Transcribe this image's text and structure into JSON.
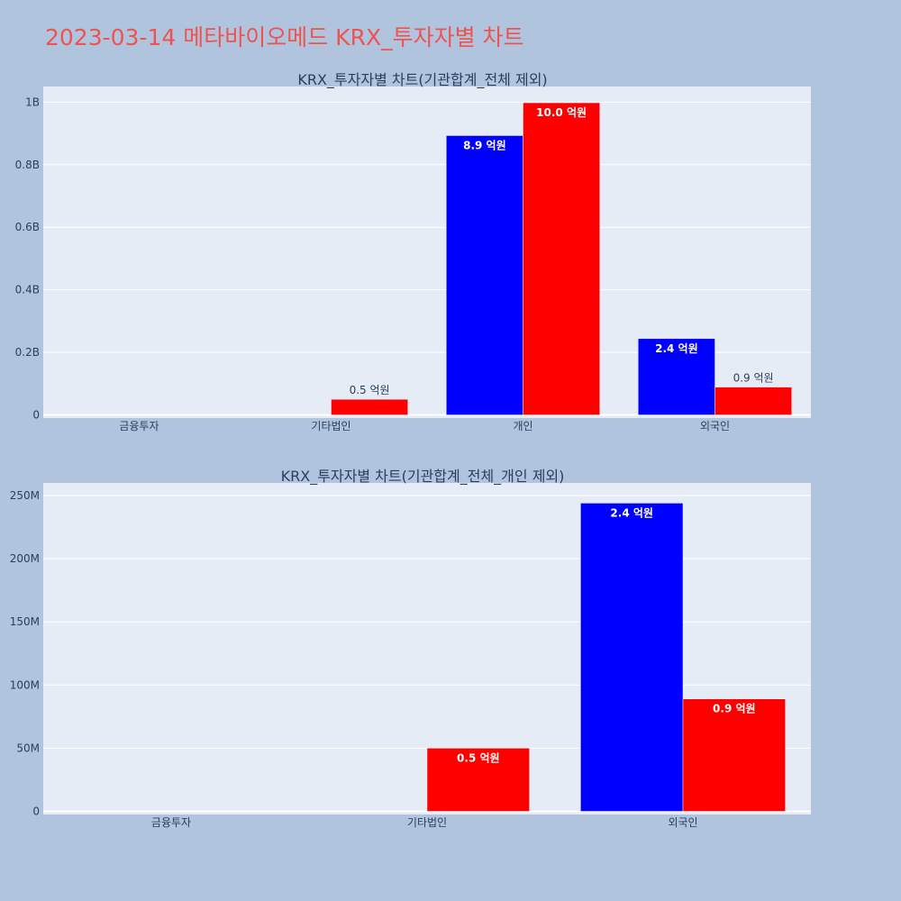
{
  "page": {
    "title": "2023-03-14 메타바이오메드 KRX_투자자별 차트",
    "colors": {
      "background": "#b0c4de",
      "plot_bg": "#e5ecf6",
      "title": "#ef5350",
      "buy": "#0000ff",
      "sell": "#ff0000"
    }
  },
  "chart_data": [
    {
      "type": "bar",
      "title": "KRX_투자자별 차트(기관합계_전체 제외)",
      "categories": [
        "금융투자",
        "기타법인",
        "개인",
        "외국인"
      ],
      "series": [
        {
          "color": "#0000ff",
          "values": [
            0,
            0,
            893000000,
            244000000
          ],
          "labels": [
            "",
            "",
            "8.9 억원",
            "2.4 억원"
          ]
        },
        {
          "color": "#ff0000",
          "values": [
            0,
            50000000,
            998000000,
            89000000
          ],
          "labels": [
            "",
            "0.5 억원",
            "10.0 억원",
            "0.9 억원"
          ]
        }
      ],
      "y_ticks": [
        0,
        200000000,
        400000000,
        600000000,
        800000000,
        1000000000
      ],
      "y_tick_labels": [
        "0",
        "0.2B",
        "0.4B",
        "0.6B",
        "0.8B",
        "1B"
      ],
      "ylim": [
        -10000000,
        1050000000
      ],
      "grid": true
    },
    {
      "type": "bar",
      "title": "KRX_투자자별 차트(기관합계_전체_개인 제외)",
      "categories": [
        "금융투자",
        "기타법인",
        "외국인"
      ],
      "series": [
        {
          "color": "#0000ff",
          "values": [
            0,
            0,
            244000000
          ],
          "labels": [
            "",
            "",
            "2.4 억원"
          ]
        },
        {
          "color": "#ff0000",
          "values": [
            0,
            50000000,
            89000000
          ],
          "labels": [
            "",
            "0.5 억원",
            "0.9 억원"
          ]
        }
      ],
      "y_ticks": [
        0,
        50000000,
        100000000,
        150000000,
        200000000,
        250000000
      ],
      "y_tick_labels": [
        "0",
        "50M",
        "100M",
        "150M",
        "200M",
        "250M"
      ],
      "ylim": [
        -2500000,
        260000000
      ],
      "grid": true
    }
  ]
}
